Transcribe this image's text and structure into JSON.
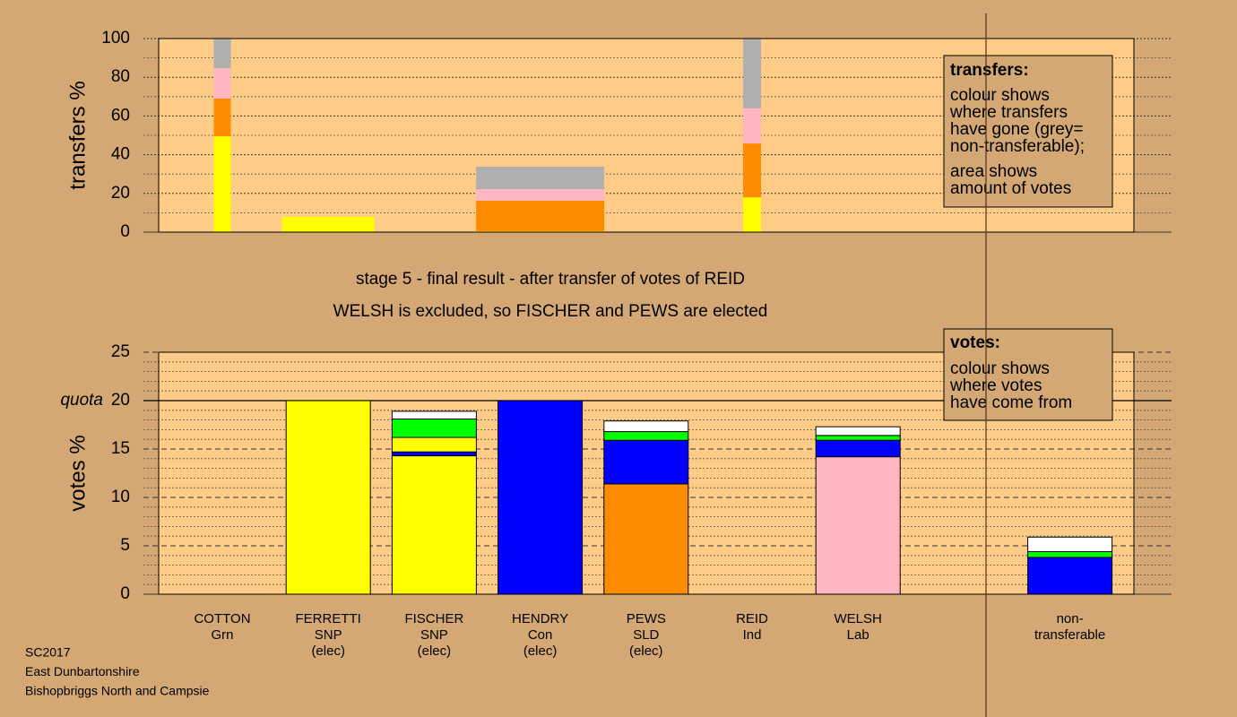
{
  "chart_data": [
    {
      "type": "bar",
      "stacked": true,
      "ylabel": "transfers %",
      "ylim": [
        0,
        100
      ],
      "yticks": [
        0,
        20,
        40,
        60,
        80,
        100
      ],
      "yminor_step": 10,
      "grid": true,
      "widths": [
        1.9,
        10.3,
        null,
        14.3,
        null,
        2.0,
        null,
        null,
        null
      ],
      "series": [
        {
          "color": "#ffff00",
          "values": [
            49.5,
            7.9,
            null,
            0.5,
            null,
            18,
            null,
            null,
            null
          ]
        },
        {
          "color": "#ff8c00",
          "values": [
            19.5,
            null,
            null,
            15.7,
            null,
            27.8,
            null,
            null,
            null
          ]
        },
        {
          "color": "#ffb6c1",
          "values": [
            15.7,
            null,
            null,
            6,
            null,
            18.1,
            null,
            null,
            null
          ]
        },
        {
          "color": "#b0b0b0",
          "values": [
            15.3,
            null,
            null,
            11.6,
            null,
            36.1,
            null,
            null,
            null
          ]
        }
      ],
      "legend": {
        "title": "transfers:",
        "groups": [
          [
            "colour shows",
            "where transfers",
            "have gone (grey=",
            "non-transferable);"
          ],
          [
            "area shows",
            "amount of votes"
          ]
        ]
      }
    },
    {
      "type": "bar",
      "stacked": true,
      "ylabel": "votes %",
      "title": "stage 5 - final result - after transfer of votes of REID",
      "subtitle": "WELSH is excluded, so FISCHER and PEWS are elected",
      "ylim": [
        0,
        25
      ],
      "yticks": [
        0,
        5,
        10,
        15,
        20,
        25
      ],
      "yminor_step": 1,
      "grid": true,
      "quota": {
        "value": 20,
        "label": "quota"
      },
      "categories": [
        [
          "COTTON",
          "Grn"
        ],
        [
          "FERRETTI",
          "SNP",
          "(elec)"
        ],
        [
          "FISCHER",
          "SNP",
          "(elec)"
        ],
        [
          "HENDRY",
          "Con",
          "(elec)"
        ],
        [
          "PEWS",
          "SLD",
          "(elec)"
        ],
        [
          "REID",
          "Ind"
        ],
        [
          "WELSH",
          "Lab"
        ],
        null,
        [
          "non-",
          "transferable"
        ]
      ],
      "series": [
        {
          "color": "#ff8c00",
          "values": [
            null,
            null,
            null,
            null,
            11.4,
            null,
            null,
            null,
            null
          ]
        },
        {
          "color": "#ffb6c1",
          "values": [
            null,
            null,
            null,
            null,
            null,
            null,
            14.2,
            null,
            null
          ]
        },
        {
          "color": "#ffff00",
          "values": [
            null,
            20,
            14.3,
            null,
            null,
            null,
            null,
            null,
            null
          ]
        },
        {
          "color": "#0000ff",
          "values": [
            null,
            null,
            0.4,
            20,
            4.5,
            null,
            1.7,
            null,
            3.8
          ]
        },
        {
          "color": "#ffff00",
          "values": [
            null,
            null,
            1.5,
            null,
            null,
            null,
            null,
            null,
            null
          ]
        },
        {
          "color": "#00ff00",
          "values": [
            0,
            null,
            1.9,
            null,
            0.9,
            null,
            0.5,
            null,
            0.6
          ]
        },
        {
          "color": "#ffffff",
          "values": [
            null,
            null,
            0.8,
            null,
            1.1,
            0,
            0.9,
            null,
            1.5
          ]
        }
      ],
      "legend": {
        "title": "votes:",
        "groups": [
          [
            "colour shows",
            "where votes",
            "have come from"
          ]
        ]
      }
    }
  ],
  "footer": [
    "SC2017",
    "East Dunbartonshire",
    "Bishopbriggs North and Campsie"
  ]
}
